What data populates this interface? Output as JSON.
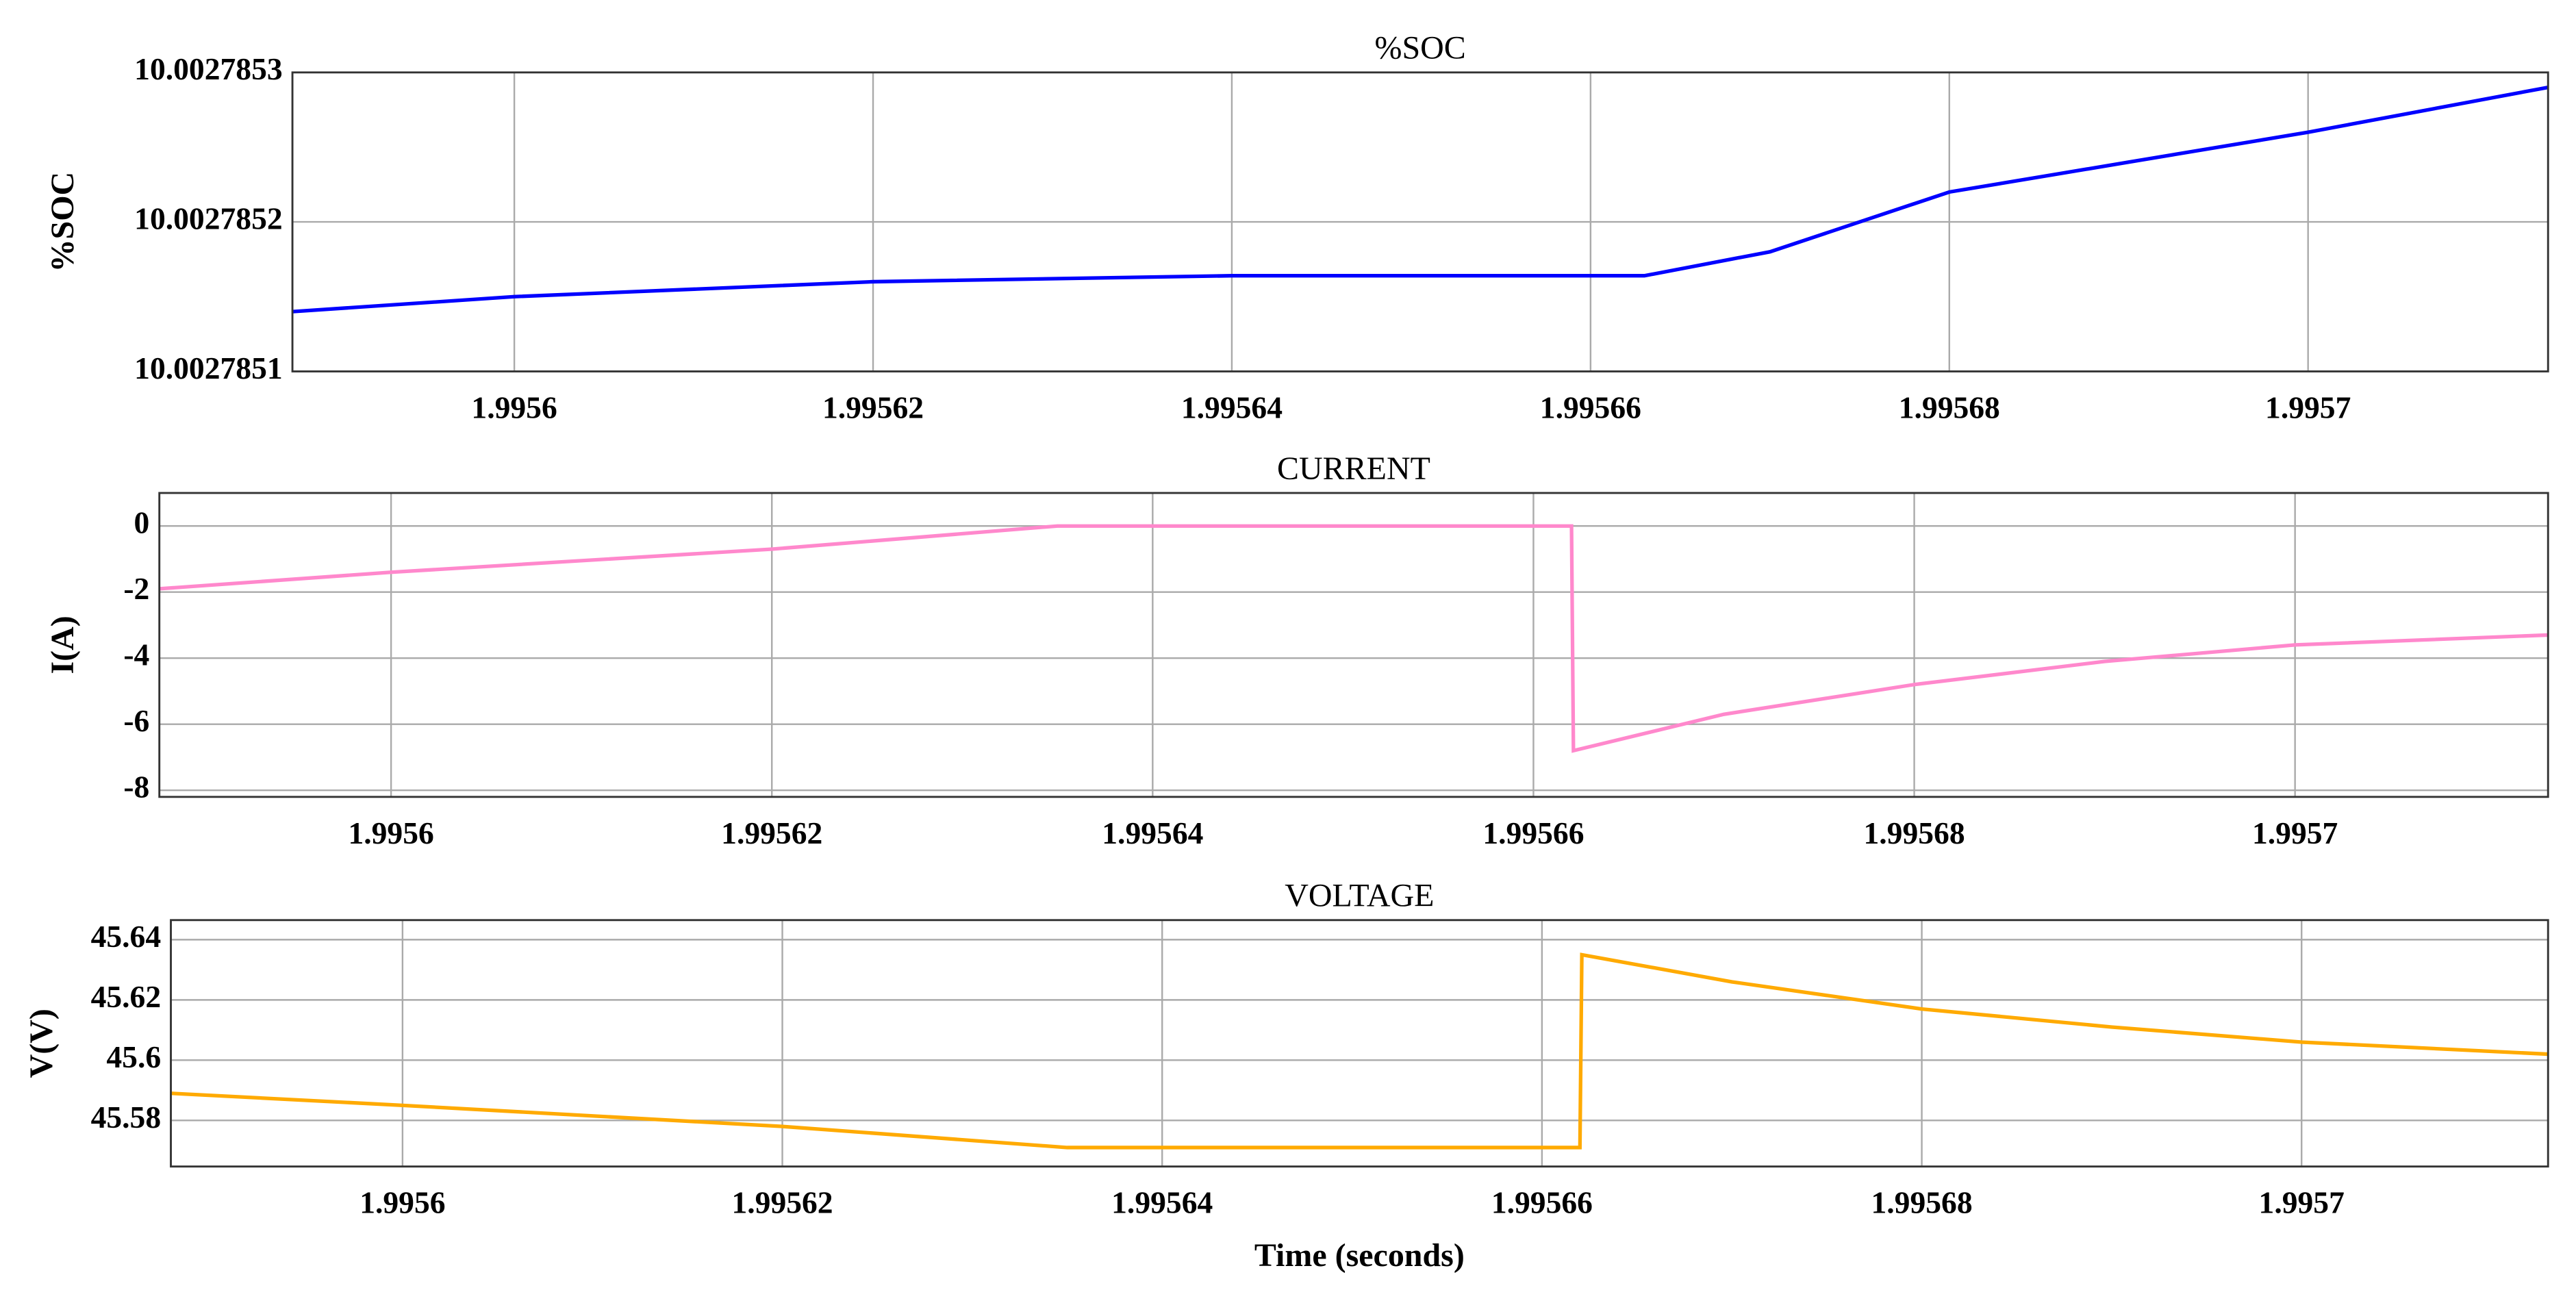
{
  "chart_data": [
    {
      "type": "line",
      "title": "%SOC",
      "y_label": "%SOC",
      "color": "#0000ff",
      "grid": true,
      "x": [
        1.99558763,
        1.9956,
        1.99562,
        1.99564,
        1.995663,
        1.99567,
        1.99568,
        1.99569,
        1.9957,
        1.99571338
      ],
      "values": [
        10.00278514,
        10.00278515,
        10.00278516,
        10.002785164,
        10.002785164,
        10.00278518,
        10.00278522,
        10.00278524,
        10.00278526,
        10.00278529
      ],
      "xlim": [
        1.99558763,
        1.99571338
      ],
      "xticks": [
        1.9956,
        1.99562,
        1.99564,
        1.99566,
        1.99568,
        1.9957
      ],
      "ylim": [
        10.0027851,
        10.0027853
      ],
      "yticks": [
        10.0027851,
        10.0027852,
        10.0027853
      ]
    },
    {
      "type": "line",
      "title": "CURRENT",
      "y_label": "I(A)",
      "color": "#ff88cc",
      "grid": true,
      "x": [
        1.99558783,
        1.9956,
        1.99562,
        1.995635,
        1.995662,
        1.9956621,
        1.99567,
        1.99568,
        1.99569,
        1.9957,
        1.99571329
      ],
      "values": [
        -1.9,
        -1.4,
        -0.7,
        0,
        0,
        -6.8,
        -5.7,
        -4.8,
        -4.1,
        -3.6,
        -3.3
      ],
      "xlim": [
        1.99558783,
        1.99571329
      ],
      "xticks": [
        1.9956,
        1.99562,
        1.99564,
        1.99566,
        1.99568,
        1.9957
      ],
      "ylim": [
        -8.2,
        1
      ],
      "yticks": [
        -8,
        -6,
        -4,
        -2,
        0
      ]
    },
    {
      "type": "line",
      "title": "VOLTAGE",
      "y_label": "V(V)",
      "x_label": "Time (seconds)",
      "color": "#ffaa00",
      "grid": true,
      "x": [
        1.9955878,
        1.9956,
        1.99562,
        1.995635,
        1.995662,
        1.9956621,
        1.99567,
        1.99568,
        1.99569,
        1.9957,
        1.99571298
      ],
      "values": [
        45.589,
        45.585,
        45.578,
        45.571,
        45.571,
        45.635,
        45.626,
        45.617,
        45.611,
        45.606,
        45.602
      ],
      "xlim": [
        1.9955878,
        1.99571298
      ],
      "xticks": [
        1.9956,
        1.99562,
        1.99564,
        1.99566,
        1.99568,
        1.9957
      ],
      "ylim": [
        45.5647,
        45.6465
      ],
      "yticks": [
        45.58,
        45.6,
        45.62,
        45.64
      ]
    }
  ]
}
